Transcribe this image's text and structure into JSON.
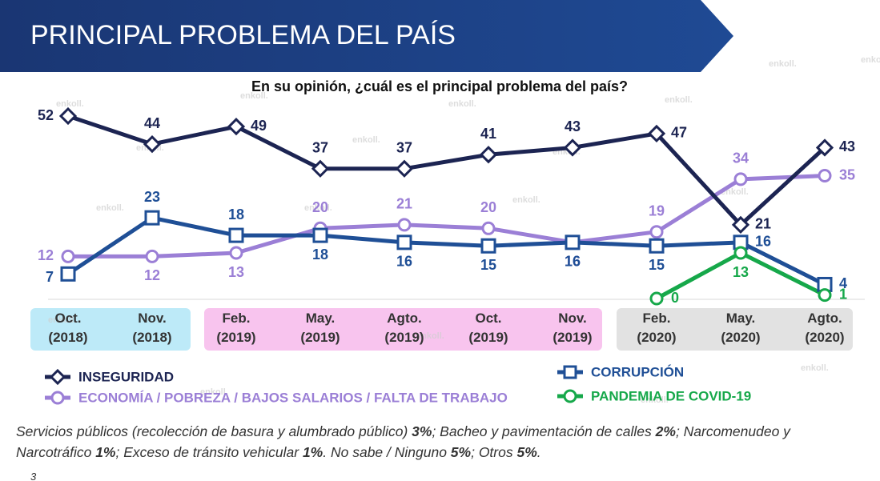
{
  "chart_data": {
    "type": "line",
    "title": "PRINCIPAL PROBLEMA DEL PAÍS",
    "subtitle": "En su opinión, ¿cuál es el principal problema del país?",
    "categories": [
      "Oct.\n(2018)",
      "Nov.\n(2018)",
      "Feb.\n(2019)",
      "May.\n(2019)",
      "Agto.\n(2019)",
      "Oct.\n(2019)",
      "Nov.\n(2019)",
      "Feb.\n(2020)",
      "May.\n(2020)",
      "Agto.\n(2020)"
    ],
    "ylim": [
      0,
      52
    ],
    "series": [
      {
        "name": "INSEGURIDAD",
        "color": "#1c2452",
        "marker": "diamond",
        "values": [
          52,
          44,
          49,
          37,
          37,
          41,
          43,
          47,
          21,
          43
        ]
      },
      {
        "name": "CORRUPCIÓN",
        "color": "#1f4f96",
        "marker": "square",
        "values": [
          7,
          23,
          18,
          18,
          16,
          15,
          16,
          15,
          16,
          4
        ]
      },
      {
        "name": "ECONOMÍA / POBREZA / BAJOS SALARIOS / FALTA DE TRABAJO",
        "color": "#9b7fd6",
        "marker": "circle",
        "values": [
          12,
          12,
          13,
          20,
          21,
          20,
          16,
          19,
          34,
          35
        ]
      },
      {
        "name": "PANDEMIA DE COVID-19",
        "color": "#16a84a",
        "marker": "circle",
        "values": [
          null,
          null,
          null,
          null,
          null,
          null,
          null,
          0,
          13,
          1
        ]
      }
    ],
    "footnote": [
      "Servicios públicos (recolección de basura y alumbrado público) ",
      "3%",
      "; Bacheo y pavimentación de calles ",
      "2%",
      "; Narcomenudeo y Narcotráfico ",
      "1%",
      "; Exceso de tránsito vehicular ",
      "1%",
      ". No sabe / Ninguno ",
      "5%",
      "; Otros ",
      "5%",
      "."
    ],
    "page_number": "3",
    "watermark": "enkoll."
  }
}
